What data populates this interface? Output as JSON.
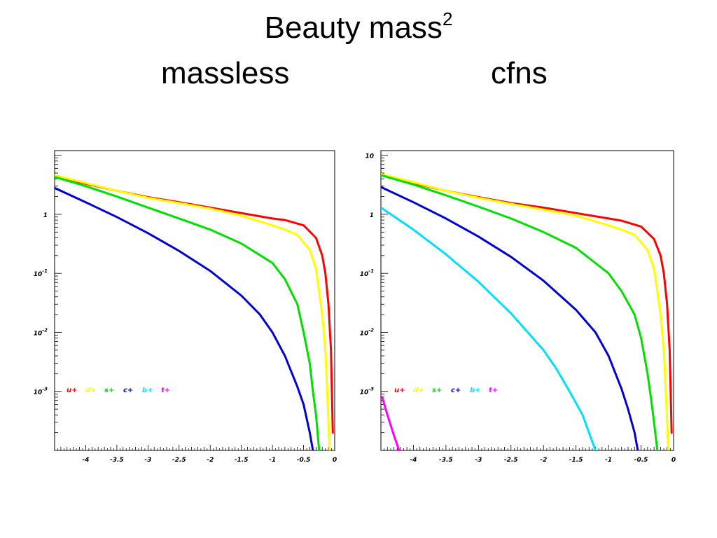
{
  "slide": {
    "title": "Beauty  mass",
    "title_sup": "2",
    "subtitle_left": "massless",
    "subtitle_right": "cfns"
  },
  "chart_data": [
    {
      "type": "line",
      "title": "massless",
      "xlim": [
        -4.5,
        0
      ],
      "ylim": [
        0.0001,
        12
      ],
      "yscale": "log",
      "x_ticks": [
        -4,
        -3.5,
        -3,
        -2.5,
        -2,
        -1.5,
        -1,
        -0.5,
        0
      ],
      "x_tick_labels": [
        "-4",
        "-3.5",
        "-3",
        "-2.5",
        "-2",
        "-1.5",
        "-1",
        "-0.5",
        "0"
      ],
      "y_ticks": [
        1,
        0.1,
        0.01,
        0.001
      ],
      "y_tick_labels": [
        {
          "base": "1",
          "exp": ""
        },
        {
          "base": "10",
          "exp": "-1"
        },
        {
          "base": "10",
          "exp": "-2"
        },
        {
          "base": "10",
          "exp": "-3"
        }
      ],
      "legend": [
        {
          "label": "u+",
          "color": "#ff0000"
        },
        {
          "label": "d+",
          "color": "#ffff00"
        },
        {
          "label": "s+",
          "color": "#00dd00"
        },
        {
          "label": "c+",
          "color": "#0000cc"
        },
        {
          "label": "b+",
          "color": "#00ddff"
        },
        {
          "label": "t+",
          "color": "#ff00ff"
        }
      ],
      "series": [
        {
          "name": "u+",
          "color": "#ff0000",
          "x": [
            -4.5,
            -4.0,
            -3.5,
            -3.0,
            -2.5,
            -2.0,
            -1.5,
            -1.0,
            -0.8,
            -0.5,
            -0.3,
            -0.2,
            -0.15,
            -0.1,
            -0.06,
            -0.03
          ],
          "y": [
            4.5,
            3.3,
            2.5,
            1.95,
            1.6,
            1.3,
            1.05,
            0.85,
            0.8,
            0.65,
            0.4,
            0.2,
            0.1,
            0.03,
            0.005,
            0.0002
          ]
        },
        {
          "name": "d+",
          "color": "#ffff00",
          "x": [
            -4.5,
            -4.0,
            -3.5,
            -3.0,
            -2.5,
            -2.0,
            -1.5,
            -1.0,
            -0.8,
            -0.6,
            -0.4,
            -0.3,
            -0.2,
            -0.15,
            -0.12,
            -0.08
          ],
          "y": [
            4.6,
            3.4,
            2.5,
            1.9,
            1.55,
            1.25,
            0.95,
            0.65,
            0.55,
            0.45,
            0.25,
            0.12,
            0.02,
            0.005,
            0.001,
            0.0001
          ]
        },
        {
          "name": "s+",
          "color": "#00dd00",
          "x": [
            -4.5,
            -4.0,
            -3.5,
            -3.0,
            -2.5,
            -2.0,
            -1.5,
            -1.0,
            -0.8,
            -0.6,
            -0.5,
            -0.4,
            -0.35,
            -0.3,
            -0.25
          ],
          "y": [
            4.3,
            3.0,
            2.0,
            1.3,
            0.85,
            0.55,
            0.32,
            0.15,
            0.08,
            0.03,
            0.01,
            0.003,
            0.001,
            0.0004,
            0.0001
          ]
        },
        {
          "name": "c+",
          "color": "#0000cc",
          "x": [
            -4.5,
            -4.0,
            -3.5,
            -3.0,
            -2.5,
            -2.0,
            -1.5,
            -1.2,
            -1.0,
            -0.8,
            -0.6,
            -0.5,
            -0.4,
            -0.35
          ],
          "y": [
            2.8,
            1.6,
            0.9,
            0.48,
            0.24,
            0.11,
            0.042,
            0.02,
            0.01,
            0.004,
            0.0012,
            0.0006,
            0.0002,
            0.0001
          ]
        }
      ]
    },
    {
      "type": "line",
      "title": "cfns",
      "xlim": [
        -4.5,
        0
      ],
      "ylim": [
        0.0001,
        12
      ],
      "yscale": "log",
      "x_ticks": [
        -4,
        -3.5,
        -3,
        -2.5,
        -2,
        -1.5,
        -1,
        -0.5,
        0
      ],
      "x_tick_labels": [
        "-4",
        "-3.5",
        "-3",
        "-2.5",
        "-2",
        "-1.5",
        "-1",
        "-0.5",
        "0"
      ],
      "y_ticks": [
        10,
        1,
        0.1,
        0.01,
        0.001
      ],
      "y_tick_labels": [
        {
          "base": "10",
          "exp": ""
        },
        {
          "base": "1",
          "exp": ""
        },
        {
          "base": "10",
          "exp": "-1"
        },
        {
          "base": "10",
          "exp": "-2"
        },
        {
          "base": "10",
          "exp": "-3"
        }
      ],
      "legend": [
        {
          "label": "u+",
          "color": "#ff0000"
        },
        {
          "label": "d+",
          "color": "#ffff00"
        },
        {
          "label": "s+",
          "color": "#00dd00"
        },
        {
          "label": "c+",
          "color": "#0000cc"
        },
        {
          "label": "b+",
          "color": "#00ddff"
        },
        {
          "label": "t+",
          "color": "#ff00ff"
        }
      ],
      "series": [
        {
          "name": "u+",
          "color": "#ff0000",
          "x": [
            -4.5,
            -4.0,
            -3.5,
            -3.0,
            -2.5,
            -2.0,
            -1.5,
            -1.0,
            -0.8,
            -0.5,
            -0.3,
            -0.2,
            -0.15,
            -0.1,
            -0.06,
            -0.03
          ],
          "y": [
            4.7,
            3.4,
            2.5,
            1.95,
            1.55,
            1.3,
            1.05,
            0.85,
            0.78,
            0.62,
            0.38,
            0.2,
            0.1,
            0.03,
            0.005,
            0.0002
          ]
        },
        {
          "name": "d+",
          "color": "#ffff00",
          "x": [
            -4.5,
            -4.0,
            -3.5,
            -3.0,
            -2.5,
            -2.0,
            -1.5,
            -1.0,
            -0.8,
            -0.6,
            -0.4,
            -0.3,
            -0.2,
            -0.15,
            -0.12,
            -0.08
          ],
          "y": [
            4.8,
            3.5,
            2.5,
            1.9,
            1.5,
            1.2,
            0.95,
            0.65,
            0.55,
            0.45,
            0.25,
            0.12,
            0.02,
            0.005,
            0.001,
            0.0001
          ]
        },
        {
          "name": "s+",
          "color": "#00dd00",
          "x": [
            -4.5,
            -4.0,
            -3.5,
            -3.0,
            -2.5,
            -2.0,
            -1.5,
            -1.0,
            -0.8,
            -0.6,
            -0.5,
            -0.4,
            -0.35,
            -0.3,
            -0.25
          ],
          "y": [
            4.6,
            3.2,
            2.1,
            1.35,
            0.85,
            0.5,
            0.27,
            0.1,
            0.05,
            0.02,
            0.008,
            0.002,
            0.0008,
            0.0003,
            0.0001
          ]
        },
        {
          "name": "c+",
          "color": "#0000cc",
          "x": [
            -4.5,
            -4.0,
            -3.5,
            -3.0,
            -2.5,
            -2.0,
            -1.5,
            -1.2,
            -1.0,
            -0.8,
            -0.7,
            -0.6,
            -0.55
          ],
          "y": [
            2.9,
            1.6,
            0.85,
            0.42,
            0.19,
            0.075,
            0.024,
            0.01,
            0.004,
            0.0011,
            0.0005,
            0.0002,
            0.0001
          ]
        },
        {
          "name": "b+",
          "color": "#00ddff",
          "x": [
            -4.5,
            -4.0,
            -3.5,
            -3.0,
            -2.5,
            -2.0,
            -1.8,
            -1.6,
            -1.4,
            -1.3,
            -1.2
          ],
          "y": [
            1.3,
            0.55,
            0.21,
            0.072,
            0.021,
            0.005,
            0.0024,
            0.001,
            0.0004,
            0.0002,
            0.0001
          ]
        },
        {
          "name": "t+",
          "color": "#ff00ff",
          "x": [
            -4.48,
            -4.4,
            -4.3,
            -4.22
          ],
          "y": [
            0.0008,
            0.0004,
            0.00018,
            0.0001
          ]
        }
      ]
    }
  ]
}
